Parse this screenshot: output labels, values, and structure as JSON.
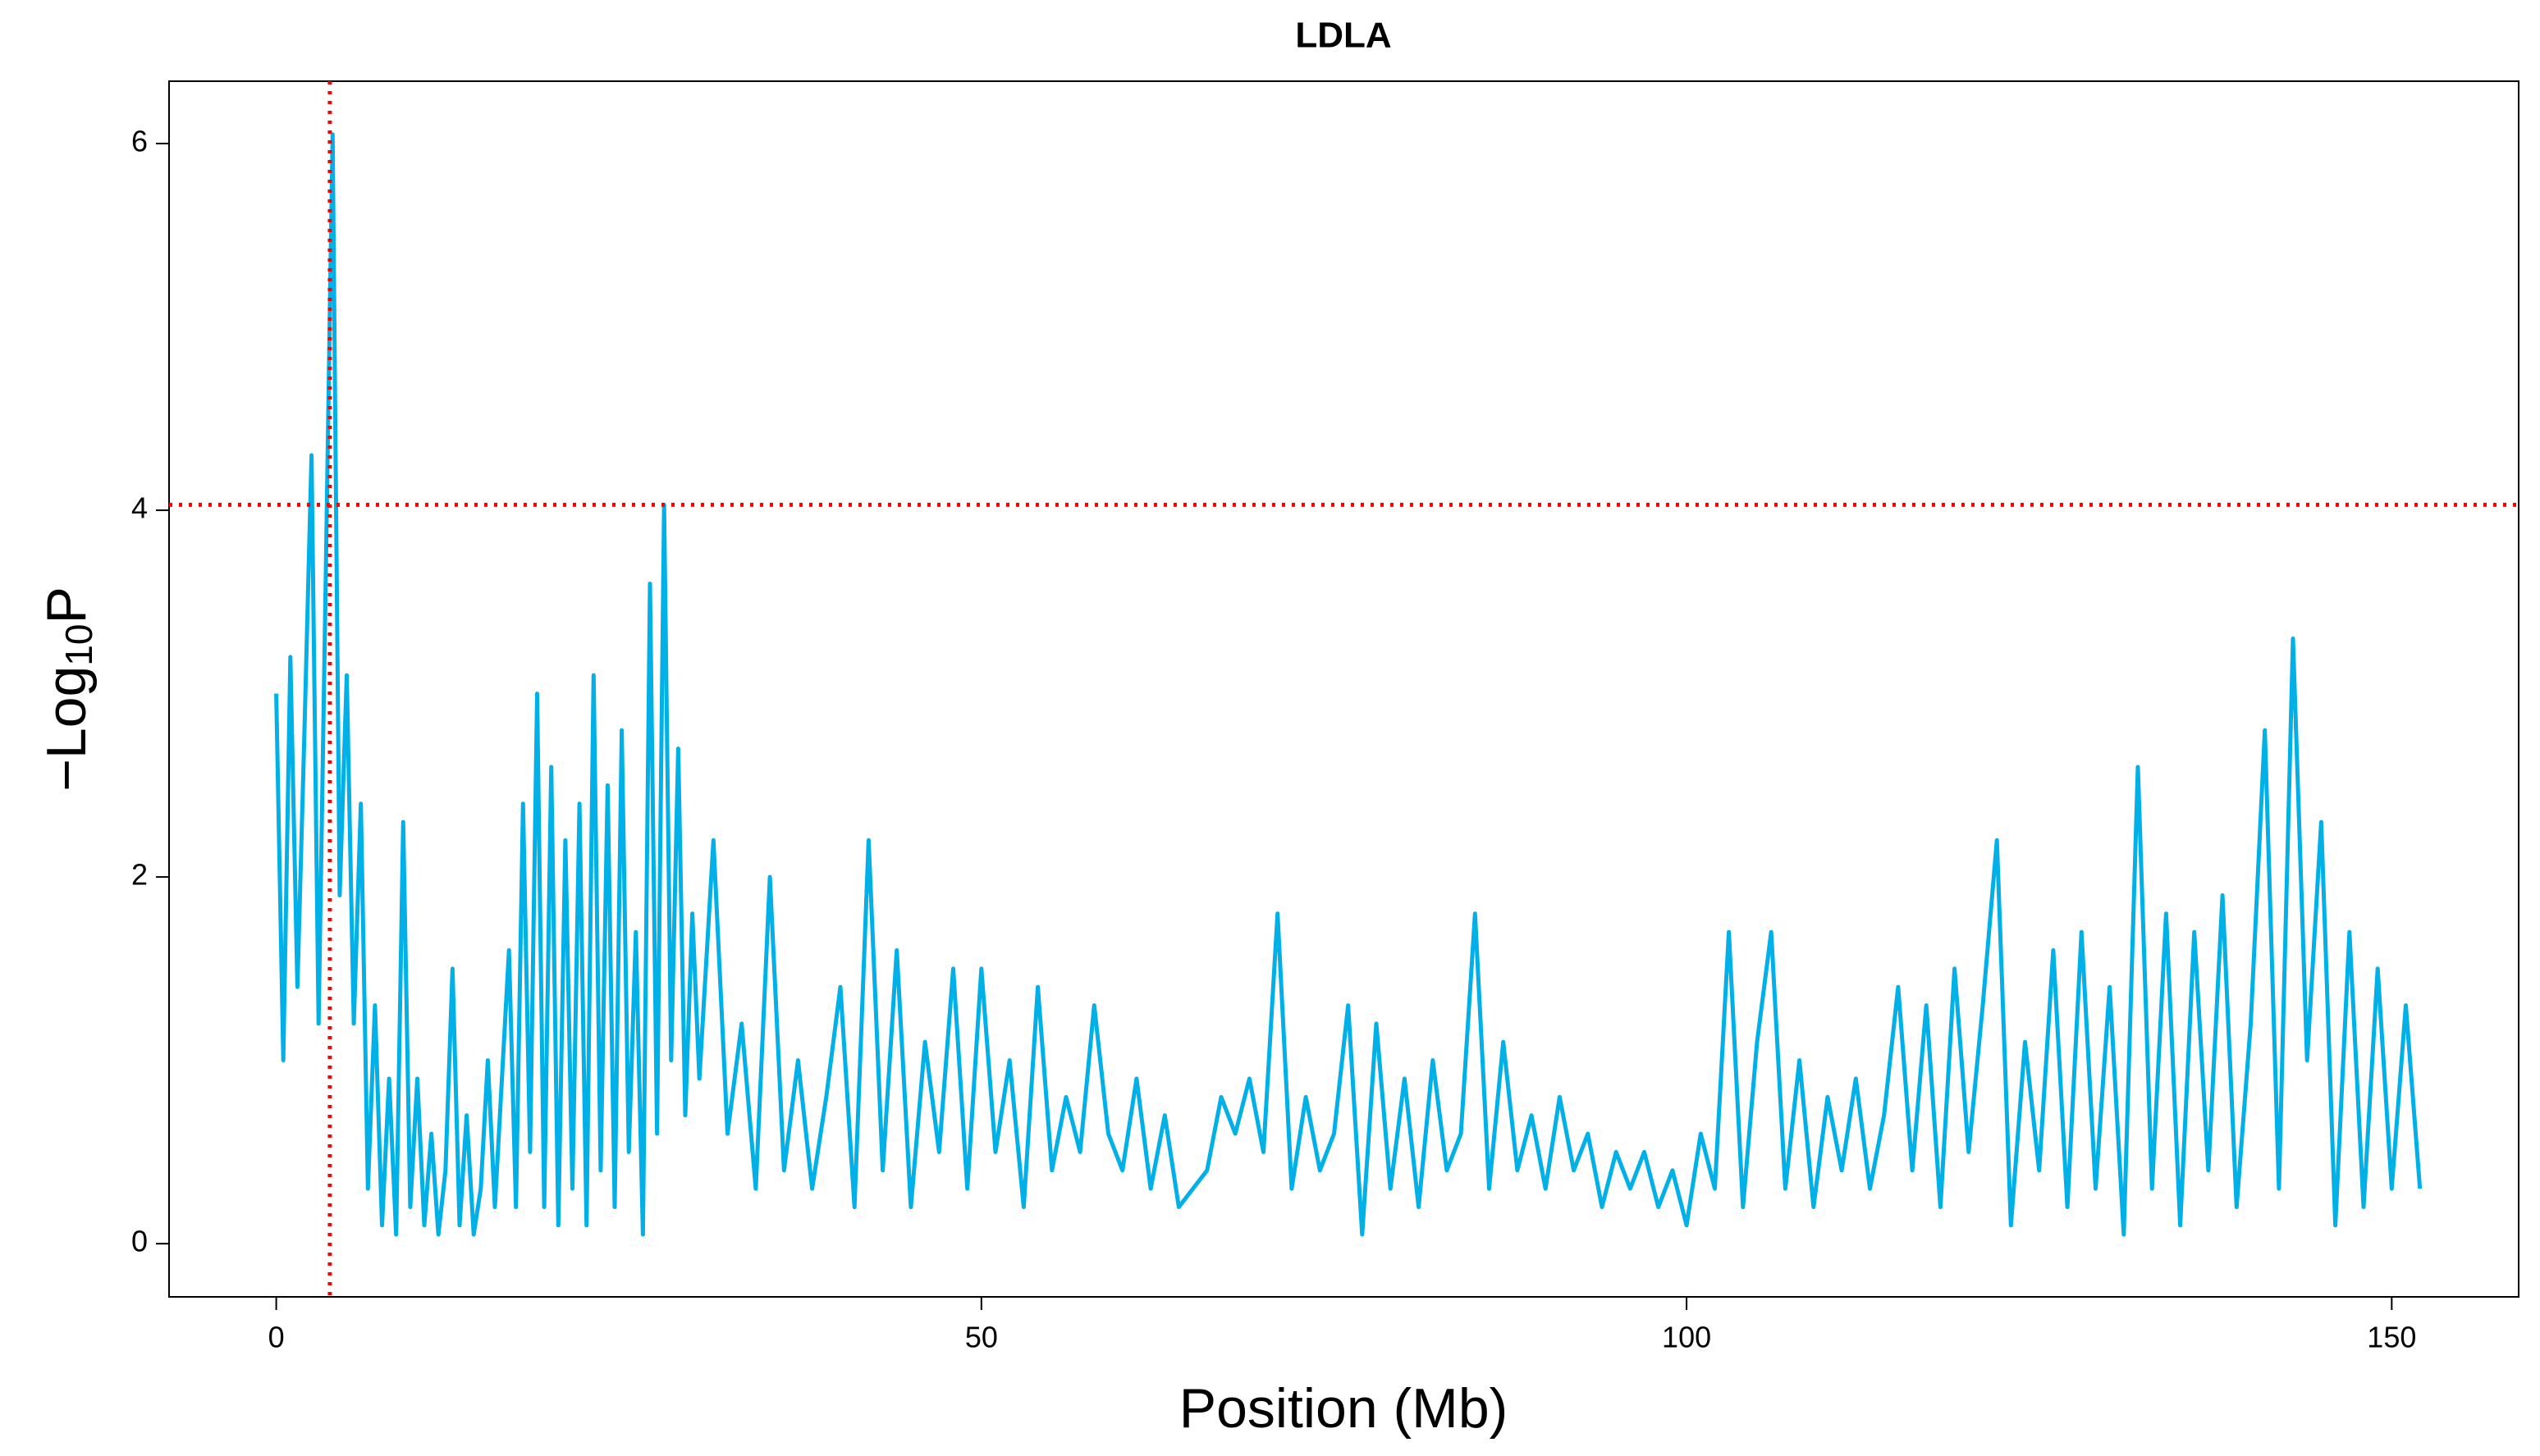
{
  "chart_data": {
    "type": "line",
    "title": "LDLA",
    "xlabel": "Position (Mb)",
    "ylabel": [
      "−Log",
      "10",
      "P"
    ],
    "xlim": [
      -7.6,
      159
    ],
    "ylim": [
      -0.29,
      6.34
    ],
    "xticks": [
      0,
      50,
      100,
      150
    ],
    "yticks": [
      0,
      2,
      4,
      6
    ],
    "hlines": [
      4.03
    ],
    "vlines": [
      3.8
    ],
    "ref_color": "#ff0000",
    "x": [
      0,
      0.5,
      1,
      1.5,
      2,
      2.5,
      3,
      3.5,
      4,
      4.5,
      5,
      5.5,
      6,
      6.5,
      7,
      7.5,
      8,
      8.5,
      9,
      9.5,
      10,
      10.5,
      11,
      11.5,
      12,
      12.5,
      13,
      13.5,
      14,
      14.5,
      15,
      15.5,
      16,
      16.5,
      17,
      17.5,
      18,
      18.5,
      19,
      19.5,
      20,
      20.5,
      21,
      21.5,
      22,
      22.5,
      23,
      23.5,
      24,
      24.5,
      25,
      25.5,
      26,
      26.5,
      27,
      27.5,
      28,
      28.5,
      29,
      29.5,
      30,
      31,
      32,
      33,
      34,
      35,
      36,
      37,
      38,
      39,
      40,
      41,
      42,
      43,
      44,
      45,
      46,
      47,
      48,
      49,
      50,
      51,
      52,
      53,
      54,
      55,
      56,
      57,
      58,
      59,
      60,
      61,
      62,
      63,
      64,
      65,
      66,
      67,
      68,
      69,
      70,
      71,
      72,
      73,
      74,
      75,
      76,
      77,
      78,
      79,
      80,
      81,
      82,
      83,
      84,
      85,
      86,
      87,
      88,
      89,
      90,
      91,
      92,
      93,
      94,
      95,
      96,
      97,
      98,
      99,
      100,
      101,
      102,
      103,
      104,
      105,
      106,
      107,
      108,
      109,
      110,
      111,
      112,
      113,
      114,
      115,
      116,
      117,
      118,
      119,
      120,
      121,
      122,
      123,
      124,
      125,
      126,
      127,
      128,
      129,
      130,
      131,
      132,
      133,
      134,
      135,
      136,
      137,
      138,
      139,
      140,
      141,
      142,
      143,
      144,
      145,
      146,
      147,
      148,
      149,
      150,
      151,
      152
    ],
    "series": [
      {
        "color": "#00b0e6",
        "values": [
          3.0,
          1.0,
          3.2,
          1.4,
          2.8,
          4.3,
          1.2,
          3.6,
          6.05,
          1.9,
          3.1,
          1.2,
          2.4,
          0.3,
          1.3,
          0.1,
          0.9,
          0.05,
          2.3,
          0.2,
          0.9,
          0.1,
          0.6,
          0.05,
          0.4,
          1.5,
          0.1,
          0.7,
          0.05,
          0.3,
          1.0,
          0.2,
          0.9,
          1.6,
          0.2,
          2.4,
          0.5,
          3.0,
          0.2,
          2.6,
          0.1,
          2.2,
          0.3,
          2.4,
          0.1,
          3.1,
          0.4,
          2.5,
          0.2,
          2.8,
          0.5,
          1.7,
          0.05,
          3.6,
          0.6,
          4.03,
          1.0,
          2.7,
          0.7,
          1.8,
          0.9,
          2.2,
          0.6,
          1.2,
          0.3,
          2.0,
          0.4,
          1.0,
          0.3,
          0.8,
          1.4,
          0.2,
          2.2,
          0.4,
          1.6,
          0.2,
          1.1,
          0.5,
          1.5,
          0.3,
          1.5,
          0.5,
          1.0,
          0.2,
          1.4,
          0.4,
          0.8,
          0.5,
          1.3,
          0.6,
          0.4,
          0.9,
          0.3,
          0.7,
          0.2,
          0.3,
          0.4,
          0.8,
          0.6,
          0.9,
          0.5,
          1.8,
          0.3,
          0.8,
          0.4,
          0.6,
          1.3,
          0.05,
          1.2,
          0.3,
          0.9,
          0.2,
          1.0,
          0.4,
          0.6,
          1.8,
          0.3,
          1.1,
          0.4,
          0.7,
          0.3,
          0.8,
          0.4,
          0.6,
          0.2,
          0.5,
          0.3,
          0.5,
          0.2,
          0.4,
          0.1,
          0.6,
          0.3,
          1.7,
          0.2,
          1.1,
          1.7,
          0.3,
          1.0,
          0.2,
          0.8,
          0.4,
          0.9,
          0.3,
          0.7,
          1.4,
          0.4,
          1.3,
          0.2,
          1.5,
          0.5,
          1.3,
          2.2,
          0.1,
          1.1,
          0.4,
          1.6,
          0.2,
          1.7,
          0.3,
          1.4,
          0.05,
          2.6,
          0.3,
          1.8,
          0.1,
          1.7,
          0.4,
          1.9,
          0.2,
          1.2,
          2.8,
          0.3,
          3.3,
          1.0,
          2.3,
          0.1,
          1.7,
          0.2,
          1.5,
          0.3,
          1.3,
          0.3
        ]
      }
    ]
  }
}
